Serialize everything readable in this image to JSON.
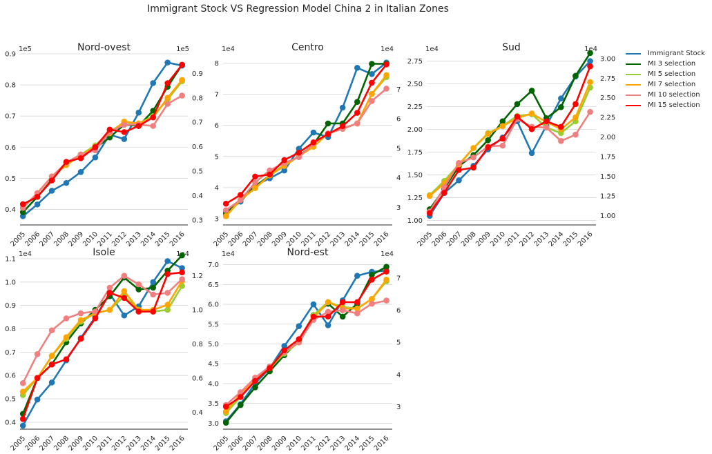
{
  "figure": {
    "title": "Immigrant Stock VS Regression Model China 2 in Italian Zones"
  },
  "legend": {
    "placement": "outside-right",
    "items": [
      {
        "name": "Immigrant Stock",
        "color": "#1f77b4"
      },
      {
        "name": "MI 3 selection",
        "color": "#006400"
      },
      {
        "name": "MI 5 selection",
        "color": "#9acd32"
      },
      {
        "name": "MI 7 selection",
        "color": "#ffa500"
      },
      {
        "name": "MI 10 selection",
        "color": "#f08080"
      },
      {
        "name": "MI 15 selection",
        "color": "#ff0000"
      }
    ]
  },
  "chart_data": [
    {
      "type": "line",
      "title": "Nord-ovest",
      "x": [
        "2005",
        "2006",
        "2007",
        "2008",
        "2009",
        "2010",
        "2011",
        "2012",
        "2013",
        "2014",
        "2015",
        "2016"
      ],
      "left_axis": {
        "ylim": [
          0.35,
          0.9
        ],
        "ticks": [
          "0.4",
          "0.5",
          "0.6",
          "0.7",
          "0.8",
          "0.9"
        ],
        "ticks_values": [
          0.4,
          0.5,
          0.6,
          0.7,
          0.8,
          0.9
        ],
        "scale_label": "1e5"
      },
      "right_axis": {
        "ylim": [
          0.28,
          0.98
        ],
        "ticks": [
          "0.3",
          "0.4",
          "0.5",
          "0.6",
          "0.7",
          "0.8",
          "0.9"
        ],
        "ticks_values": [
          0.3,
          0.4,
          0.5,
          0.6,
          0.7,
          0.8,
          0.9
        ],
        "scale_label": "1e5"
      },
      "grid": true,
      "series": [
        {
          "name": "Immigrant Stock",
          "color": "#1f77b4",
          "axis": "left",
          "values": [
            0.378,
            0.416,
            0.46,
            0.485,
            0.52,
            0.567,
            0.64,
            0.626,
            0.711,
            0.806,
            0.872,
            0.862
          ]
        },
        {
          "name": "MI 3 selection",
          "color": "#006400",
          "axis": "right",
          "values": [
            0.332,
            0.395,
            0.465,
            0.535,
            0.568,
            0.595,
            0.638,
            0.69,
            0.685,
            0.747,
            0.845,
            0.935
          ]
        },
        {
          "name": "MI 5 selection",
          "color": "#9acd32",
          "axis": "right",
          "values": [
            0.35,
            0.41,
            0.478,
            0.525,
            0.568,
            0.605,
            0.66,
            0.7,
            0.695,
            0.725,
            0.793,
            0.868
          ]
        },
        {
          "name": "MI 7 selection",
          "color": "#ffa500",
          "axis": "right",
          "values": [
            0.35,
            0.41,
            0.478,
            0.525,
            0.565,
            0.6,
            0.655,
            0.703,
            0.695,
            0.72,
            0.8,
            0.873
          ]
        },
        {
          "name": "MI 10 selection",
          "color": "#f08080",
          "axis": "right",
          "values": [
            0.35,
            0.41,
            0.478,
            0.535,
            0.568,
            0.585,
            0.66,
            0.69,
            0.69,
            0.685,
            0.775,
            0.809
          ]
        },
        {
          "name": "MI 15 selection",
          "color": "#ff0000",
          "axis": "right",
          "values": [
            0.365,
            0.395,
            0.462,
            0.538,
            0.553,
            0.598,
            0.67,
            0.66,
            0.685,
            0.72,
            0.86,
            0.935
          ]
        }
      ]
    },
    {
      "type": "line",
      "title": "Centro",
      "x": [
        "2005",
        "2006",
        "2007",
        "2008",
        "2009",
        "2010",
        "2011",
        "2012",
        "2013",
        "2014",
        "2015",
        "2016"
      ],
      "left_axis": {
        "ylim": [
          2.8,
          8.3
        ],
        "ticks": [
          "3",
          "4",
          "5",
          "6",
          "7",
          "8"
        ],
        "ticks_values": [
          3,
          4,
          5,
          6,
          7,
          8
        ],
        "scale_label": "1e4"
      },
      "right_axis": {
        "ylim": [
          2.4,
          8.2
        ],
        "ticks": [
          "3",
          "4",
          "5",
          "6",
          "7"
        ],
        "ticks_values": [
          3,
          4,
          5,
          6,
          7
        ],
        "scale_label": "1e4"
      },
      "grid": true,
      "series": [
        {
          "name": "Immigrant Stock",
          "color": "#1f77b4",
          "axis": "left",
          "values": [
            3.2,
            3.55,
            4.07,
            4.3,
            4.55,
            5.25,
            5.77,
            5.62,
            6.57,
            7.85,
            7.65,
            8.02
          ]
        },
        {
          "name": "MI 3 selection",
          "color": "#006400",
          "axis": "right",
          "values": [
            2.77,
            3.25,
            3.71,
            4.08,
            4.43,
            4.73,
            5.13,
            5.84,
            5.84,
            6.57,
            7.86,
            7.86
          ]
        },
        {
          "name": "MI 5 selection",
          "color": "#9acd32",
          "axis": "right",
          "values": [
            2.7,
            3.25,
            3.65,
            4.08,
            4.43,
            4.73,
            5.06,
            5.5,
            5.66,
            5.84,
            6.84,
            7.41
          ]
        },
        {
          "name": "MI 7 selection",
          "color": "#ffa500",
          "axis": "right",
          "values": [
            2.7,
            3.25,
            3.65,
            4.08,
            4.4,
            4.73,
            5.05,
            5.5,
            5.66,
            5.84,
            6.84,
            7.48
          ]
        },
        {
          "name": "MI 10 selection",
          "color": "#f08080",
          "axis": "right",
          "values": [
            2.9,
            3.25,
            3.84,
            4.25,
            4.5,
            4.7,
            5.16,
            5.5,
            5.66,
            5.84,
            6.6,
            7.02
          ]
        },
        {
          "name": "MI 15 selection",
          "color": "#ff0000",
          "axis": "right",
          "values": [
            3.12,
            3.42,
            4.04,
            4.11,
            4.6,
            4.85,
            5.2,
            5.48,
            5.75,
            6.2,
            7.22,
            7.84
          ]
        }
      ]
    },
    {
      "type": "line",
      "title": "Sud",
      "x": [
        "2005",
        "2006",
        "2007",
        "2008",
        "2009",
        "2010",
        "2011",
        "2012",
        "2013",
        "2014",
        "2015",
        "2016"
      ],
      "left_axis": {
        "ylim": [
          0.95,
          2.83
        ],
        "ticks": [
          "1.00",
          "1.25",
          "1.50",
          "1.75",
          "2.00",
          "2.25",
          "2.50",
          "2.75"
        ],
        "ticks_values": [
          1,
          1.25,
          1.5,
          1.75,
          2,
          2.25,
          2.5,
          2.75
        ],
        "scale_label": "1e4"
      },
      "right_axis": {
        "ylim": [
          0.88,
          3.06
        ],
        "ticks": [
          "1.00",
          "1.25",
          "1.50",
          "1.75",
          "2.00",
          "2.25",
          "2.50",
          "2.75",
          "3.00"
        ],
        "ticks_values": [
          1,
          1.25,
          1.5,
          1.75,
          2,
          2.25,
          2.5,
          2.75,
          3
        ],
        "scale_label": "1e4"
      },
      "grid": true,
      "series": [
        {
          "name": "Immigrant Stock",
          "color": "#1f77b4",
          "axis": "left",
          "values": [
            1.05,
            1.3,
            1.44,
            1.6,
            1.78,
            1.91,
            2.09,
            1.74,
            2.04,
            2.34,
            2.58,
            2.75
          ]
        },
        {
          "name": "MI 3 selection",
          "color": "#006400",
          "axis": "right",
          "values": [
            1.08,
            1.34,
            1.63,
            1.77,
            1.96,
            2.2,
            2.42,
            2.59,
            2.24,
            2.38,
            2.78,
            3.07
          ]
        },
        {
          "name": "MI 5 selection",
          "color": "#9acd32",
          "axis": "right",
          "values": [
            1.26,
            1.44,
            1.65,
            1.86,
            2.05,
            2.14,
            2.27,
            2.29,
            2.12,
            2.05,
            2.2,
            2.63
          ]
        },
        {
          "name": "MI 7 selection",
          "color": "#ffa500",
          "axis": "right",
          "values": [
            1.25,
            1.41,
            1.65,
            1.86,
            2.04,
            2.14,
            2.24,
            2.3,
            2.19,
            2.1,
            2.25,
            2.7
          ]
        },
        {
          "name": "MI 10 selection",
          "color": "#f08080",
          "axis": "right",
          "values": [
            1.05,
            1.36,
            1.67,
            1.74,
            1.88,
            1.89,
            2.23,
            2.13,
            2.12,
            1.95,
            2.03,
            2.32
          ]
        },
        {
          "name": "MI 15 selection",
          "color": "#ff0000",
          "axis": "right",
          "values": [
            1.03,
            1.29,
            1.58,
            1.61,
            1.87,
            1.98,
            2.26,
            2.1,
            2.2,
            2.13,
            2.42,
            2.9
          ]
        }
      ]
    },
    {
      "type": "line",
      "title": "Isole",
      "x": [
        "2005",
        "2006",
        "2007",
        "2008",
        "2009",
        "2010",
        "2011",
        "2012",
        "2013",
        "2014",
        "2015",
        "2016"
      ],
      "left_axis": {
        "ylim": [
          0.37,
          1.1
        ],
        "ticks": [
          "0.4",
          "0.5",
          "0.6",
          "0.7",
          "0.8",
          "0.9",
          "1.0",
          "1.1"
        ],
        "ticks_values": [
          0.4,
          0.5,
          0.6,
          0.7,
          0.8,
          0.9,
          1.0,
          1.1
        ],
        "scale_label": "1e4"
      },
      "right_axis": {
        "ylim": [
          0.3,
          1.3
        ],
        "ticks": [
          "0.4",
          "0.6",
          "0.8",
          "1.0",
          "1.2"
        ],
        "ticks_values": [
          0.4,
          0.6,
          0.8,
          1.0,
          1.2
        ],
        "scale_label": "1e4"
      },
      "grid": true,
      "series": [
        {
          "name": "Immigrant Stock",
          "color": "#1f77b4",
          "axis": "left",
          "values": [
            0.385,
            0.497,
            0.57,
            0.665,
            0.76,
            0.85,
            0.95,
            0.857,
            0.896,
            1.0,
            1.09,
            1.06
          ]
        },
        {
          "name": "MI 3 selection",
          "color": "#006400",
          "axis": "right",
          "values": [
            0.39,
            0.6,
            0.68,
            0.81,
            0.92,
            1.0,
            1.08,
            1.19,
            1.12,
            1.13,
            1.23,
            1.32
          ]
        },
        {
          "name": "MI 5 selection",
          "color": "#9acd32",
          "axis": "right",
          "values": [
            0.5,
            0.6,
            0.73,
            0.83,
            0.93,
            0.98,
            1.0,
            1.08,
            1.0,
            0.99,
            1.0,
            1.14
          ]
        },
        {
          "name": "MI 7 selection",
          "color": "#ffa500",
          "axis": "right",
          "values": [
            0.52,
            0.6,
            0.73,
            0.84,
            0.94,
            0.98,
            1.0,
            1.11,
            1.0,
            1.0,
            1.03,
            1.17
          ]
        },
        {
          "name": "MI 10 selection",
          "color": "#f08080",
          "axis": "right",
          "values": [
            0.57,
            0.74,
            0.88,
            0.95,
            0.98,
            0.99,
            1.13,
            1.2,
            1.15,
            1.09,
            1.1,
            1.18
          ]
        },
        {
          "name": "MI 15 selection",
          "color": "#ff0000",
          "axis": "right",
          "values": [
            0.36,
            0.6,
            0.68,
            0.71,
            0.83,
            0.95,
            1.1,
            1.07,
            0.99,
            0.99,
            1.21,
            1.22
          ]
        }
      ]
    },
    {
      "type": "line",
      "title": "Nord-est",
      "x": [
        "2005",
        "2006",
        "2007",
        "2008",
        "2009",
        "2010",
        "2011",
        "2012",
        "2013",
        "2014",
        "2015",
        "2016"
      ],
      "left_axis": {
        "ylim": [
          2.85,
          7.15
        ],
        "ticks": [
          "3.0",
          "3.5",
          "4.0",
          "4.5",
          "5.0",
          "5.5",
          "6.0",
          "6.5",
          "7.0"
        ],
        "ticks_values": [
          3,
          3.5,
          4,
          4.5,
          5,
          5.5,
          6,
          6.5,
          7
        ],
        "scale_label": "1e4"
      },
      "right_axis": {
        "ylim": [
          2.3,
          7.6
        ],
        "ticks": [
          "3",
          "4",
          "5",
          "6",
          "7"
        ],
        "ticks_values": [
          3,
          4,
          5,
          6,
          7
        ],
        "scale_label": "1e4"
      },
      "grid": true,
      "series": [
        {
          "name": "Immigrant Stock",
          "color": "#1f77b4",
          "axis": "left",
          "values": [
            3.05,
            3.48,
            4.0,
            4.39,
            4.95,
            5.45,
            6.0,
            5.47,
            6.1,
            6.72,
            6.82,
            6.85
          ]
        },
        {
          "name": "MI 3 selection",
          "color": "#006400",
          "axis": "right",
          "values": [
            2.5,
            3.05,
            3.6,
            4.1,
            4.6,
            5.05,
            5.85,
            6.2,
            5.8,
            6.2,
            7.1,
            7.35
          ]
        },
        {
          "name": "MI 5 selection",
          "color": "#9acd32",
          "axis": "right",
          "values": [
            2.8,
            3.3,
            3.85,
            4.2,
            4.65,
            5.0,
            5.85,
            6.25,
            6.1,
            6.05,
            6.35,
            6.9
          ]
        },
        {
          "name": "MI 7 selection",
          "color": "#ffa500",
          "axis": "right",
          "values": [
            2.85,
            3.4,
            3.85,
            4.2,
            4.7,
            5.0,
            5.75,
            6.25,
            6.05,
            6.05,
            6.35,
            6.95
          ]
        },
        {
          "name": "MI 10 selection",
          "color": "#f08080",
          "axis": "right",
          "values": [
            3.05,
            3.45,
            3.9,
            4.25,
            4.7,
            5.0,
            5.7,
            5.95,
            6.0,
            5.9,
            6.2,
            6.3
          ]
        },
        {
          "name": "MI 15 selection",
          "color": "#ff0000",
          "axis": "right",
          "values": [
            3.0,
            3.3,
            3.8,
            4.2,
            4.75,
            5.1,
            5.8,
            5.8,
            6.25,
            6.25,
            6.95,
            7.2
          ]
        }
      ]
    }
  ]
}
